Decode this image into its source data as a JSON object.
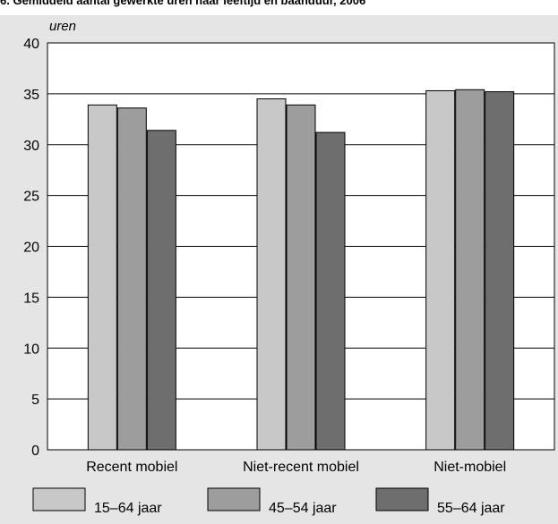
{
  "title": "6. Gemiddeld aantal gewerkte uren naar leeftijd en baanduur, 2006",
  "chart_data": {
    "type": "bar",
    "ylabel": "uren",
    "ylim": [
      0,
      40
    ],
    "yticks": [
      0,
      5,
      10,
      15,
      20,
      25,
      30,
      35,
      40
    ],
    "grid": true,
    "legend_position": "bottom",
    "categories": [
      "Recent mobiel",
      "Niet-recent mobiel",
      "Niet-mobiel"
    ],
    "series": [
      {
        "name": "15–64 jaar",
        "color": "#c8c8c8",
        "values": [
          33.9,
          34.5,
          35.3
        ]
      },
      {
        "name": "45–54 jaar",
        "color": "#9d9d9d",
        "values": [
          33.6,
          33.9,
          35.4
        ]
      },
      {
        "name": "55–64 jaar",
        "color": "#6e6e6e",
        "values": [
          31.4,
          31.2,
          35.2
        ]
      }
    ]
  }
}
